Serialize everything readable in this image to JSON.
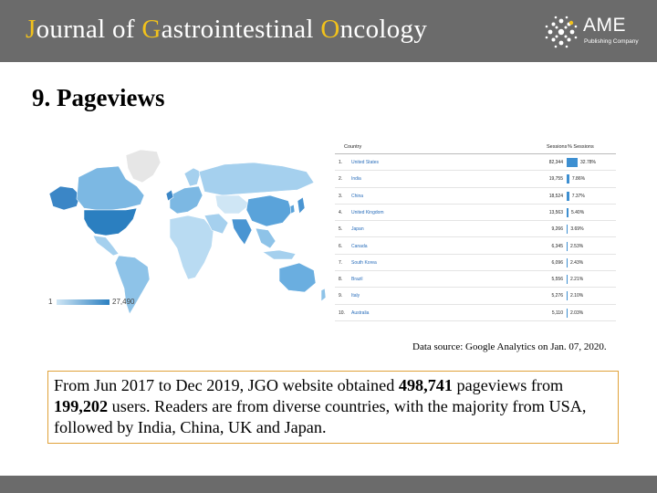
{
  "header": {
    "journal_title_parts": [
      "J",
      "ournal of ",
      "G",
      "astrointestinal ",
      "O",
      "ncology"
    ],
    "logo_text": "AME",
    "logo_sub": "Publishing Company",
    "accent_color": "#f2c21b",
    "bar_color": "#6b6b6b"
  },
  "slide": {
    "title": "9. Pageviews"
  },
  "map": {
    "legend_min": "1",
    "legend_max": "27,490",
    "low_color": "#cfe6f5",
    "high_color": "#2b7fc0"
  },
  "table": {
    "headers": {
      "country": "Country",
      "sessions": "Sessions",
      "pct": "% Sessions"
    },
    "rows": [
      {
        "rank": "1.",
        "country": "United States",
        "sessions": "82,344",
        "pct": "32.78%",
        "pct_value": 32.78
      },
      {
        "rank": "2.",
        "country": "India",
        "sessions": "19,755",
        "pct": "7.86%",
        "pct_value": 7.86
      },
      {
        "rank": "3.",
        "country": "China",
        "sessions": "18,524",
        "pct": "7.37%",
        "pct_value": 7.37
      },
      {
        "rank": "4.",
        "country": "United Kingdom",
        "sessions": "13,563",
        "pct": "5.40%",
        "pct_value": 5.4
      },
      {
        "rank": "5.",
        "country": "Japan",
        "sessions": "9,266",
        "pct": "3.69%",
        "pct_value": 3.69
      },
      {
        "rank": "6.",
        "country": "Canada",
        "sessions": "6,345",
        "pct": "2.53%",
        "pct_value": 2.53
      },
      {
        "rank": "7.",
        "country": "South Korea",
        "sessions": "6,096",
        "pct": "2.43%",
        "pct_value": 2.43
      },
      {
        "rank": "8.",
        "country": "Brazil",
        "sessions": "5,556",
        "pct": "2.21%",
        "pct_value": 2.21
      },
      {
        "rank": "9.",
        "country": "Italy",
        "sessions": "5,276",
        "pct": "2.10%",
        "pct_value": 2.1
      },
      {
        "rank": "10.",
        "country": "Australia",
        "sessions": "5,110",
        "pct": "2.03%",
        "pct_value": 2.03
      }
    ]
  },
  "source": "Data source: Google Analytics on Jan. 07, 2020.",
  "summary": {
    "part1": "From Jun 2017 to Dec 2019, JGO website obtained ",
    "pageviews": "498,741",
    "part2": " pageviews from ",
    "users": "199,202",
    "part3": " users. Readers are from diverse countries, with the majority from USA, followed by India, China, UK and Japan."
  }
}
